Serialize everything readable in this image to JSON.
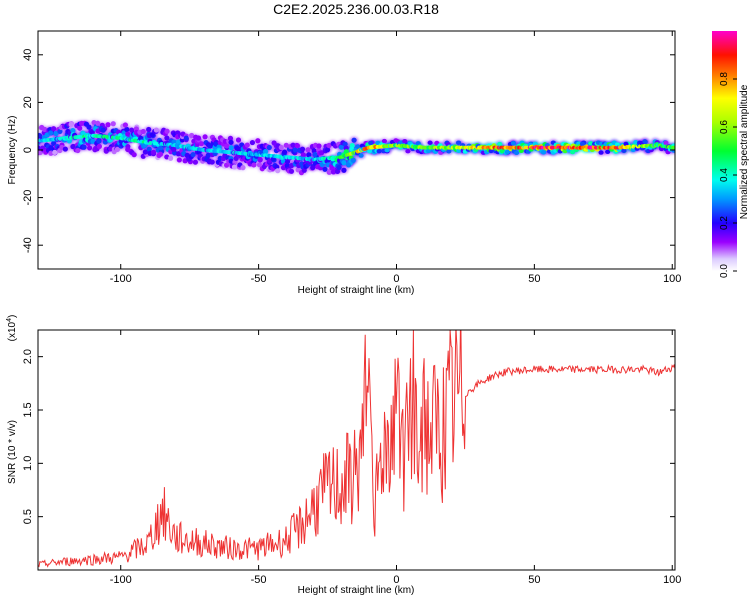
{
  "chart_data": [
    {
      "type": "heatmap",
      "title": "C2E2.2025.236.00.03.R18",
      "xlabel": "Height of straight line (km)",
      "ylabel": "Frequency (Hz)",
      "xlim": [
        -130,
        101
      ],
      "ylim": [
        -50,
        50
      ],
      "xticks": [
        -100,
        -50,
        0,
        50,
        100
      ],
      "yticks": [
        -40,
        -20,
        0,
        20,
        40
      ],
      "colorbar": {
        "label": "Normalized spectral amplitude",
        "range": [
          0,
          1
        ],
        "ticks": [
          "0.0",
          "0.2",
          "0.4",
          "0.6",
          "0.8"
        ]
      },
      "ridge": {
        "description": "frequency of peak spectral amplitude vs height",
        "x": [
          -128,
          -120,
          -110,
          -100,
          -90,
          -80,
          -70,
          -60,
          -50,
          -40,
          -30,
          -20,
          -10,
          0,
          10,
          20,
          40,
          60,
          80,
          95,
          100
        ],
        "freq_hz": [
          4,
          5,
          6,
          5,
          3,
          2,
          0,
          -1,
          -2,
          -3,
          -4,
          -3,
          1,
          2,
          1,
          1,
          1,
          1,
          1,
          2,
          1
        ],
        "amplitude": [
          0.35,
          0.4,
          0.45,
          0.4,
          0.4,
          0.35,
          0.35,
          0.35,
          0.35,
          0.35,
          0.35,
          0.5,
          0.8,
          0.55,
          0.55,
          0.6,
          0.85,
          0.9,
          0.85,
          0.5,
          0.5
        ]
      }
    },
    {
      "type": "line",
      "xlabel": "Height of straight line (km)",
      "ylabel": "SNR (10 * v/v)",
      "y_multiplier_label": "(x10",
      "y_multiplier_exp": "4",
      "y_multiplier_close": ")",
      "xlim": [
        -130,
        101
      ],
      "ylim": [
        0,
        2.25
      ],
      "xticks": [
        -100,
        -50,
        0,
        50,
        100
      ],
      "yticks": [
        0.5,
        1.0,
        1.5,
        2.0
      ],
      "ytick_labels": [
        "0.5",
        "1.0",
        "1.5",
        "2.0"
      ],
      "color": "#ee3333",
      "series": [
        {
          "name": "SNR",
          "x": [
            -130,
            -120,
            -110,
            -100,
            -90,
            -85,
            -80,
            -70,
            -60,
            -50,
            -40,
            -35,
            -30,
            -25,
            -20,
            -15,
            -12,
            -10,
            -8,
            -5,
            -2,
            0,
            3,
            6,
            8,
            10,
            14,
            18,
            20,
            25,
            30,
            35,
            40,
            50,
            60,
            70,
            80,
            90,
            95,
            100
          ],
          "y_x1e4": [
            0.05,
            0.08,
            0.1,
            0.12,
            0.25,
            0.55,
            0.3,
            0.25,
            0.2,
            0.2,
            0.28,
            0.4,
            0.6,
            0.75,
            0.8,
            0.9,
            1.2,
            1.3,
            0.6,
            1.1,
            1.3,
            1.4,
            1.1,
            1.6,
            0.8,
            1.3,
            1.3,
            1.35,
            1.55,
            1.65,
            1.75,
            1.82,
            1.86,
            1.88,
            1.88,
            1.88,
            1.88,
            1.88,
            1.85,
            1.9
          ]
        }
      ]
    }
  ]
}
